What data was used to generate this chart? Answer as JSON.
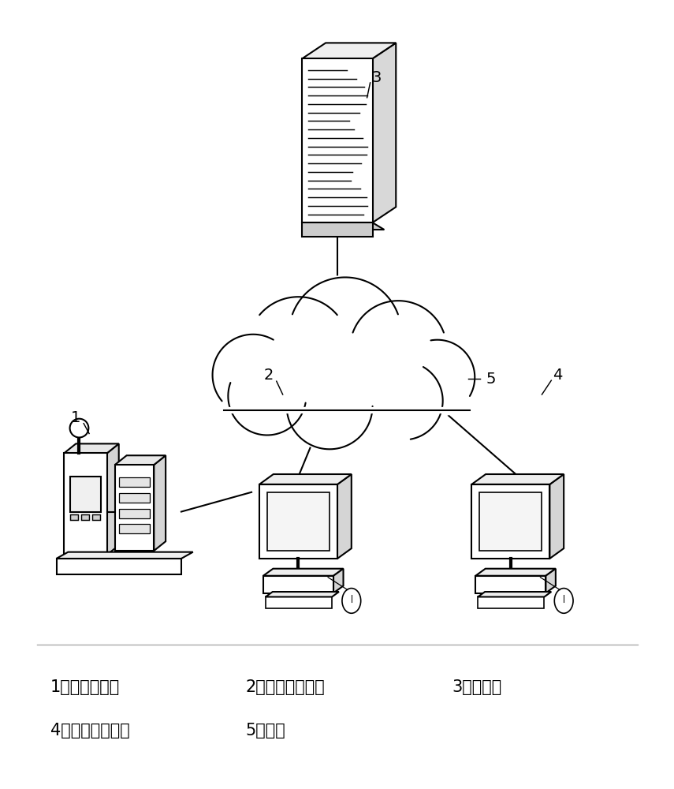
{
  "bg_color": "#ffffff",
  "line_color": "#000000",
  "legend": [
    [
      "1：数字显微镜",
      "2：信息处理设备",
      "3：服务器"
    ],
    [
      "4：图像显示设备",
      "5：网络",
      ""
    ]
  ]
}
